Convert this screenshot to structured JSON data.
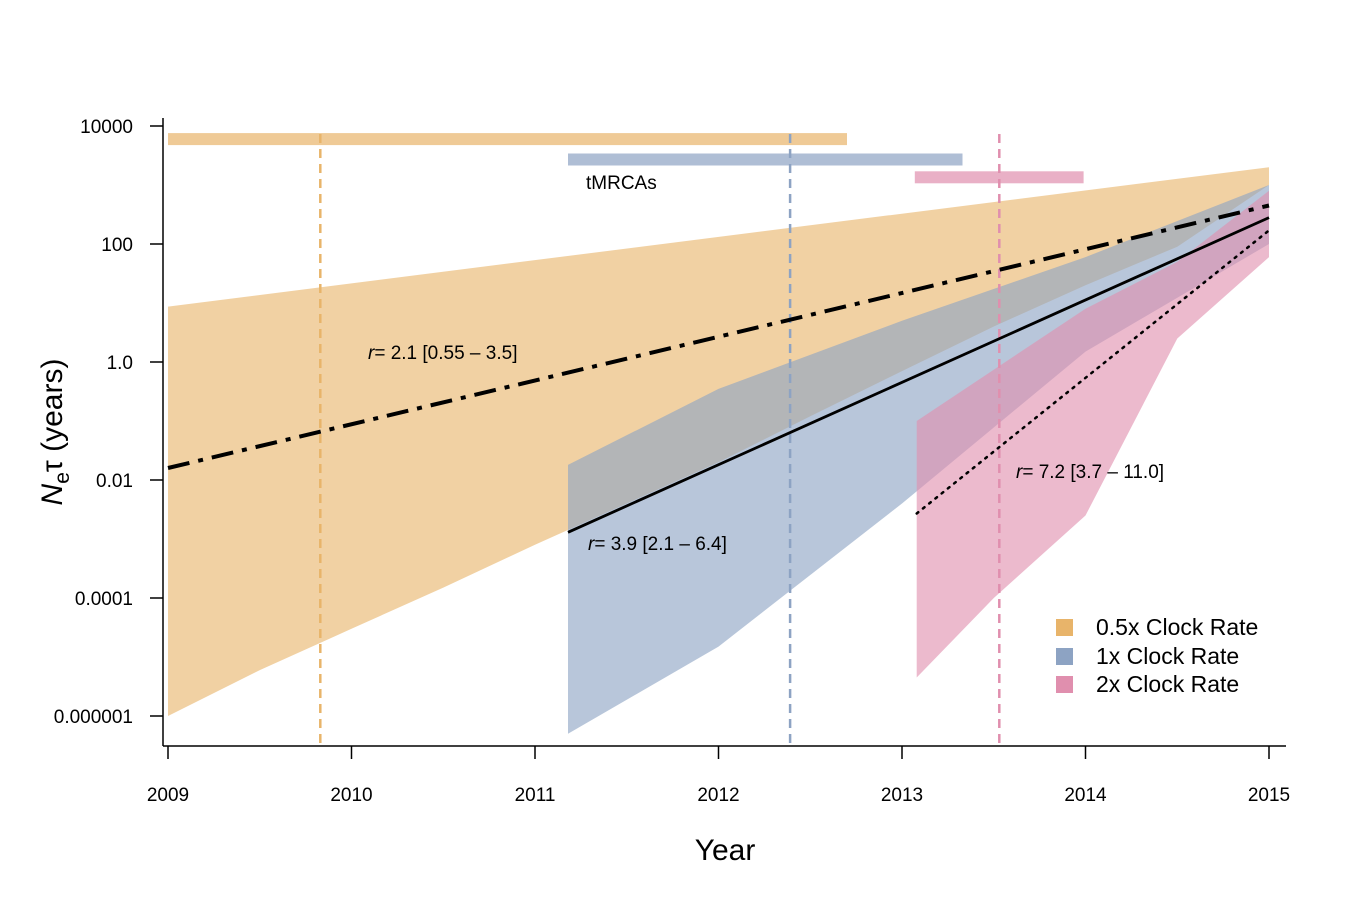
{
  "chart_data": {
    "type": "area",
    "xlabel": "Year",
    "ylabel_parts": [
      "N",
      "e",
      "τ (years)"
    ],
    "x_range": [
      2009.0,
      2015.1
    ],
    "y_range_log10": [
      -6.5,
      4.2
    ],
    "x_ticks": [
      {
        "value": 2009,
        "label": "2009"
      },
      {
        "value": 2010,
        "label": "2010"
      },
      {
        "value": 2011,
        "label": "2011"
      },
      {
        "value": 2012,
        "label": "2012"
      },
      {
        "value": 2013,
        "label": "2013"
      },
      {
        "value": 2014,
        "label": "2014"
      },
      {
        "value": 2015,
        "label": "2015"
      }
    ],
    "y_ticks": [
      {
        "value": 10000,
        "label": "10000"
      },
      {
        "value": 100,
        "label": "100"
      },
      {
        "value": 1,
        "label": "1.0"
      },
      {
        "value": 0.01,
        "label": "0.01"
      },
      {
        "value": 0.0001,
        "label": "0.0001"
      },
      {
        "value": 1e-06,
        "label": "0.000001"
      }
    ],
    "series": [
      {
        "name": "0.5x Clock Rate",
        "color": "#e8b46a",
        "band_upper": [
          [
            2009.0,
            8.7
          ],
          [
            2015.0,
            2000
          ]
        ],
        "band_lower": [
          [
            2009.0,
            1e-06
          ],
          [
            2009.5,
            6e-06
          ],
          [
            2010.0,
            3e-05
          ],
          [
            2010.5,
            0.00015
          ],
          [
            2011.0,
            0.0008
          ],
          [
            2011.5,
            0.004
          ],
          [
            2012.0,
            0.02
          ],
          [
            2012.5,
            0.12
          ],
          [
            2013.0,
            0.7
          ],
          [
            2013.5,
            4
          ],
          [
            2014.0,
            20
          ],
          [
            2014.5,
            90
          ],
          [
            2015.0,
            1000
          ]
        ],
        "line_style": "dash-dot",
        "line": [
          [
            2009.0,
            0.016
          ],
          [
            2015.0,
            450
          ]
        ],
        "tmrca": [
          2009.0,
          2012.7
        ],
        "tmrca_y": 6000,
        "vline_x": 2009.83,
        "annotation_r": "r",
        "annotation": "= 2.1 [0.55 – 3.5]"
      },
      {
        "name": "1x Clock Rate",
        "color": "#8da3c3",
        "band_upper": [
          [
            2011.18,
            0.018
          ],
          [
            2012.0,
            0.35
          ],
          [
            2013.0,
            5
          ],
          [
            2014.0,
            60
          ],
          [
            2015.0,
            1000
          ]
        ],
        "band_lower": [
          [
            2011.18,
            5e-07
          ],
          [
            2012.0,
            1.5e-05
          ],
          [
            2013.0,
            0.004
          ],
          [
            2014.0,
            1.5
          ],
          [
            2015.0,
            100
          ]
        ],
        "line_style": "solid",
        "line": [
          [
            2011.18,
            0.0013
          ],
          [
            2015.0,
            280
          ]
        ],
        "tmrca": [
          2011.18,
          2013.33
        ],
        "tmrca_y": 2700,
        "vline_x": 2012.39,
        "annotation_r": "r",
        "annotation": "= 3.9 [2.1 – 6.4]"
      },
      {
        "name": "2x Clock Rate",
        "color": "#e08fae",
        "band_upper": [
          [
            2013.08,
            0.1
          ],
          [
            2014.0,
            8
          ],
          [
            2014.5,
            50
          ],
          [
            2015.0,
            800
          ]
        ],
        "band_lower": [
          [
            2013.08,
            4.5e-06
          ],
          [
            2013.5,
            0.0001
          ],
          [
            2014.0,
            0.0025
          ],
          [
            2014.5,
            2.5
          ],
          [
            2015.0,
            60
          ]
        ],
        "line_style": "dotted",
        "line": [
          [
            2013.08,
            0.0027
          ],
          [
            2015.0,
            170
          ]
        ],
        "tmrca": [
          2013.07,
          2013.99
        ],
        "tmrca_y": 1350,
        "vline_x": 2013.53,
        "annotation_r": "r",
        "annotation": "= 7.2 [3.7 – 11.0]"
      }
    ],
    "tmrca_label": "tMRCAs",
    "legend_position": "bottom-right",
    "grid": false
  }
}
